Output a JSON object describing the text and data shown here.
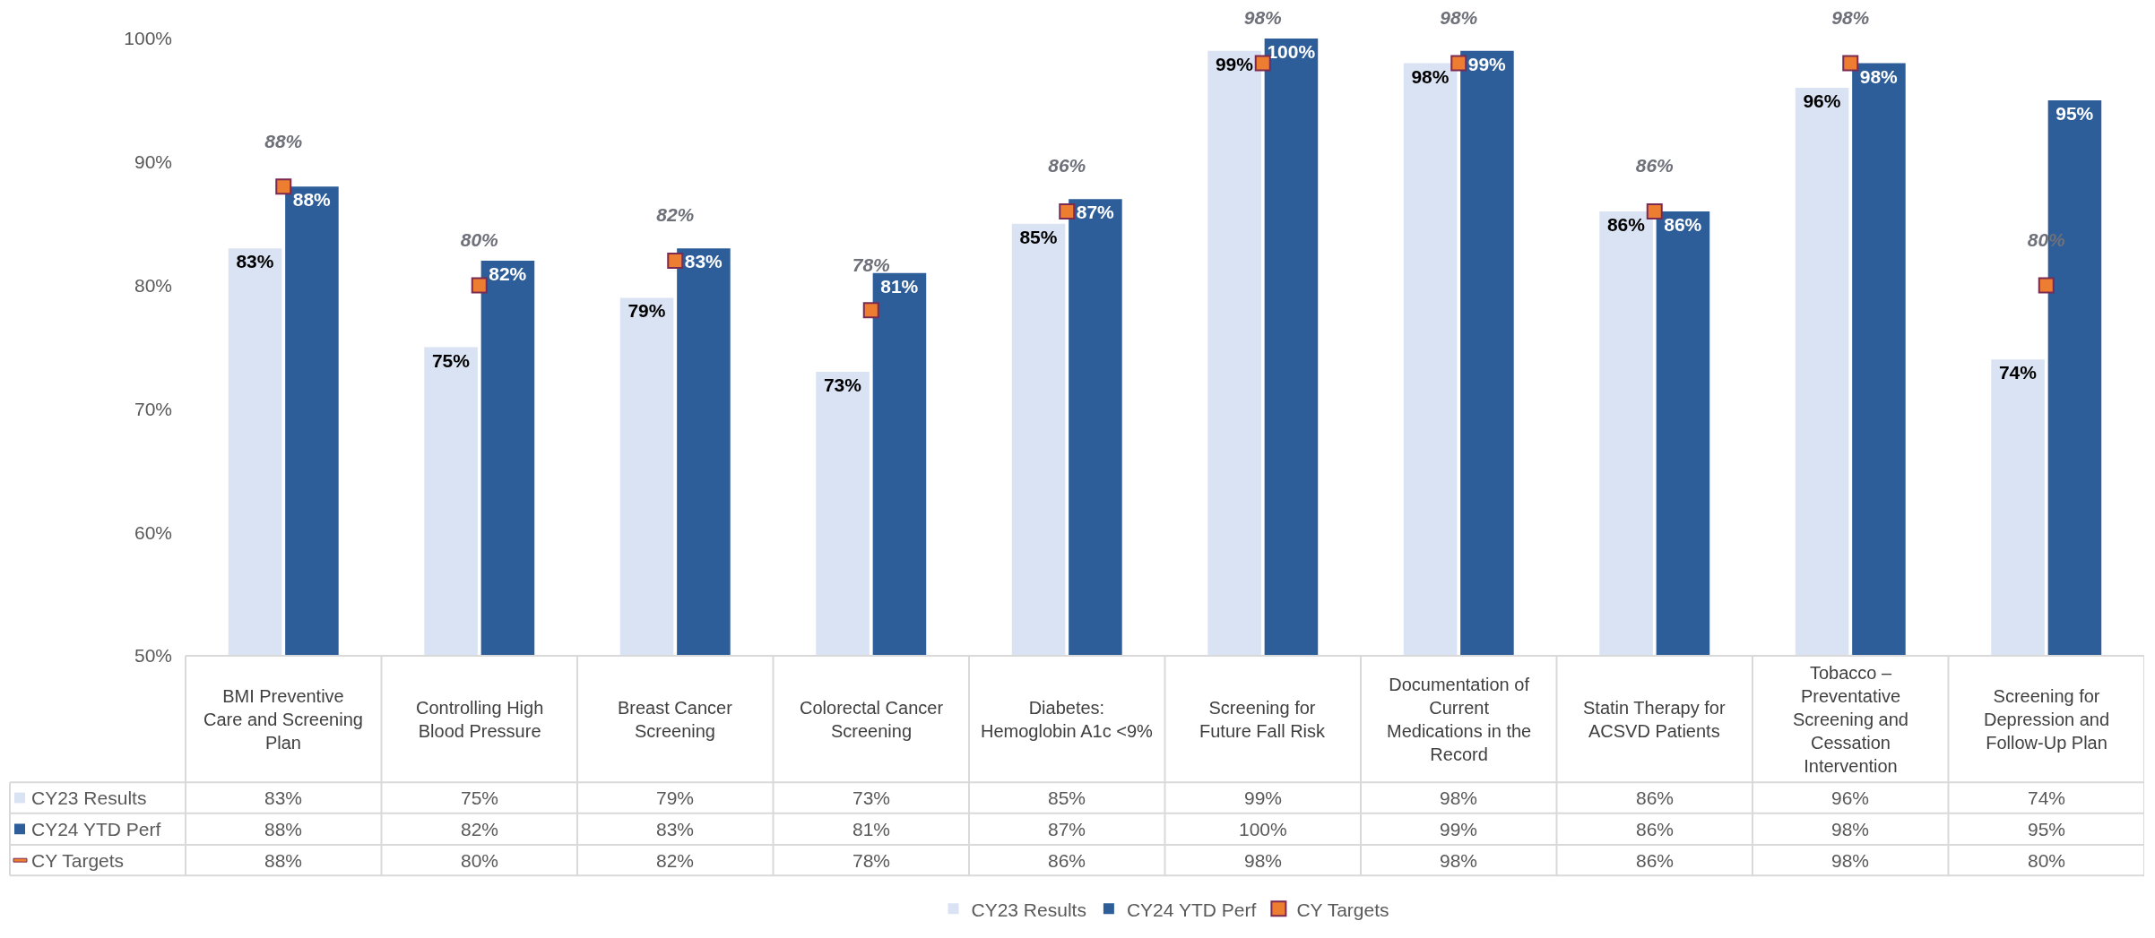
{
  "chart_data": {
    "type": "bar",
    "categories": [
      "BMI Preventive Care and Screening Plan",
      "Controlling High Blood Pressure",
      "Breast Cancer Screening",
      "Colorectal Cancer Screening",
      "Diabetes: Hemoglobin A1c <9%",
      "Screening for Future Fall Risk",
      "Documentation of Current Medications in the Record",
      "Statin Therapy for ACSVD Patients",
      "Tobacco – Preventative Screening and Cessation Intervention",
      "Screening for Depression and Follow-Up Plan"
    ],
    "series": [
      {
        "name": "CY23 Results",
        "color": "#dae3f3",
        "values": [
          83,
          75,
          79,
          73,
          85,
          99,
          98,
          86,
          96,
          74
        ],
        "value_labels": [
          "83%",
          "75%",
          "79%",
          "73%",
          "85%",
          "99%",
          "98%",
          "86%",
          "96%",
          "74%"
        ]
      },
      {
        "name": "CY24 YTD Perf",
        "color": "#2e5e99",
        "values": [
          88,
          82,
          83,
          81,
          87,
          100,
          99,
          86,
          98,
          95
        ],
        "value_labels": [
          "88%",
          "82%",
          "83%",
          "81%",
          "87%",
          "100%",
          "99%",
          "86%",
          "98%",
          "95%"
        ]
      },
      {
        "name": "CY Targets",
        "type": "scatter",
        "color": "#ed7d31",
        "values": [
          88,
          80,
          82,
          78,
          86,
          98,
          98,
          86,
          98,
          80
        ],
        "value_labels": [
          "88%",
          "80%",
          "82%",
          "78%",
          "86%",
          "98%",
          "98%",
          "86%",
          "98%",
          "80%"
        ]
      }
    ],
    "ylim": [
      50,
      100
    ],
    "yticks": [
      {
        "value": 50,
        "label": "50%"
      },
      {
        "value": 60,
        "label": "60%"
      },
      {
        "value": 70,
        "label": "70%"
      },
      {
        "value": 80,
        "label": "80%"
      },
      {
        "value": 90,
        "label": "90%"
      },
      {
        "value": 100,
        "label": "100%"
      }
    ],
    "grid": false,
    "legend": "bottom"
  }
}
